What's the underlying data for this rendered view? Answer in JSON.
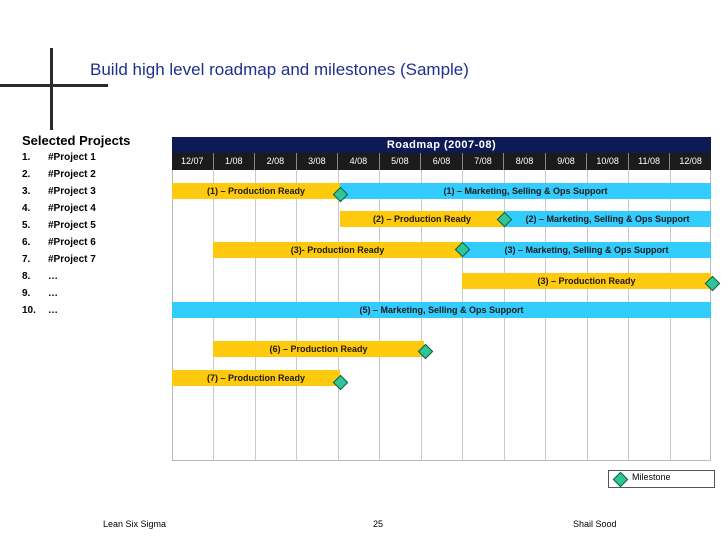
{
  "title": "Build high level roadmap and milestones (Sample)",
  "projects": {
    "heading": "Selected Projects",
    "items": [
      {
        "num": "1.",
        "name": "#Project 1"
      },
      {
        "num": "2.",
        "name": "#Project 2"
      },
      {
        "num": "3.",
        "name": "#Project 3"
      },
      {
        "num": "4.",
        "name": "#Project 4"
      },
      {
        "num": "5.",
        "name": "#Project 5"
      },
      {
        "num": "6.",
        "name": "#Project 6"
      },
      {
        "num": "7.",
        "name": "#Project 7"
      },
      {
        "num": "8.",
        "name": "…"
      },
      {
        "num": "9.",
        "name": "…"
      },
      {
        "num": "10.",
        "name": "…"
      }
    ]
  },
  "roadmap": {
    "header": "Roadmap (2007-08)",
    "months": [
      "12/07",
      "1/08",
      "2/08",
      "3/08",
      "4/08",
      "5/08",
      "6/08",
      "7/08",
      "8/08",
      "9/08",
      "10/08",
      "11/08",
      "12/08"
    ],
    "bars": [
      {
        "label": "(1) – Production Ready",
        "color": "yellow",
        "start": "12/07",
        "end": "4/08"
      },
      {
        "label": "(1) – Marketing, Selling & Ops Support",
        "color": "cyan",
        "start": "4/08",
        "end": "12/08"
      },
      {
        "label": "(2) – Production Ready",
        "color": "yellow",
        "start": "4/08",
        "end": "8/08"
      },
      {
        "label": "(2) – Marketing, Selling & Ops Support",
        "color": "cyan",
        "start": "8/08",
        "end": "12/08"
      },
      {
        "label": "(3)- Production Ready",
        "color": "yellow",
        "start": "1/08",
        "end": "7/08"
      },
      {
        "label": "(3) – Marketing, Selling & Ops Support",
        "color": "cyan",
        "start": "7/08",
        "end": "12/08"
      },
      {
        "label": "(3) – Production Ready",
        "color": "yellow",
        "start": "7/08",
        "end": "12/08"
      },
      {
        "label": "(5) – Marketing, Selling & Ops Support",
        "color": "cyan",
        "start": "12/07",
        "end": "12/08"
      },
      {
        "label": "(6) – Production Ready",
        "color": "yellow",
        "start": "1/08",
        "end": "6/08"
      },
      {
        "label": "(7) – Production Ready",
        "color": "yellow",
        "start": "12/07",
        "end": "4/08"
      }
    ]
  },
  "legend": {
    "label": "Milestone"
  },
  "footer": {
    "left": "Lean Six Sigma",
    "center": "25",
    "right": "Shail Sood"
  }
}
